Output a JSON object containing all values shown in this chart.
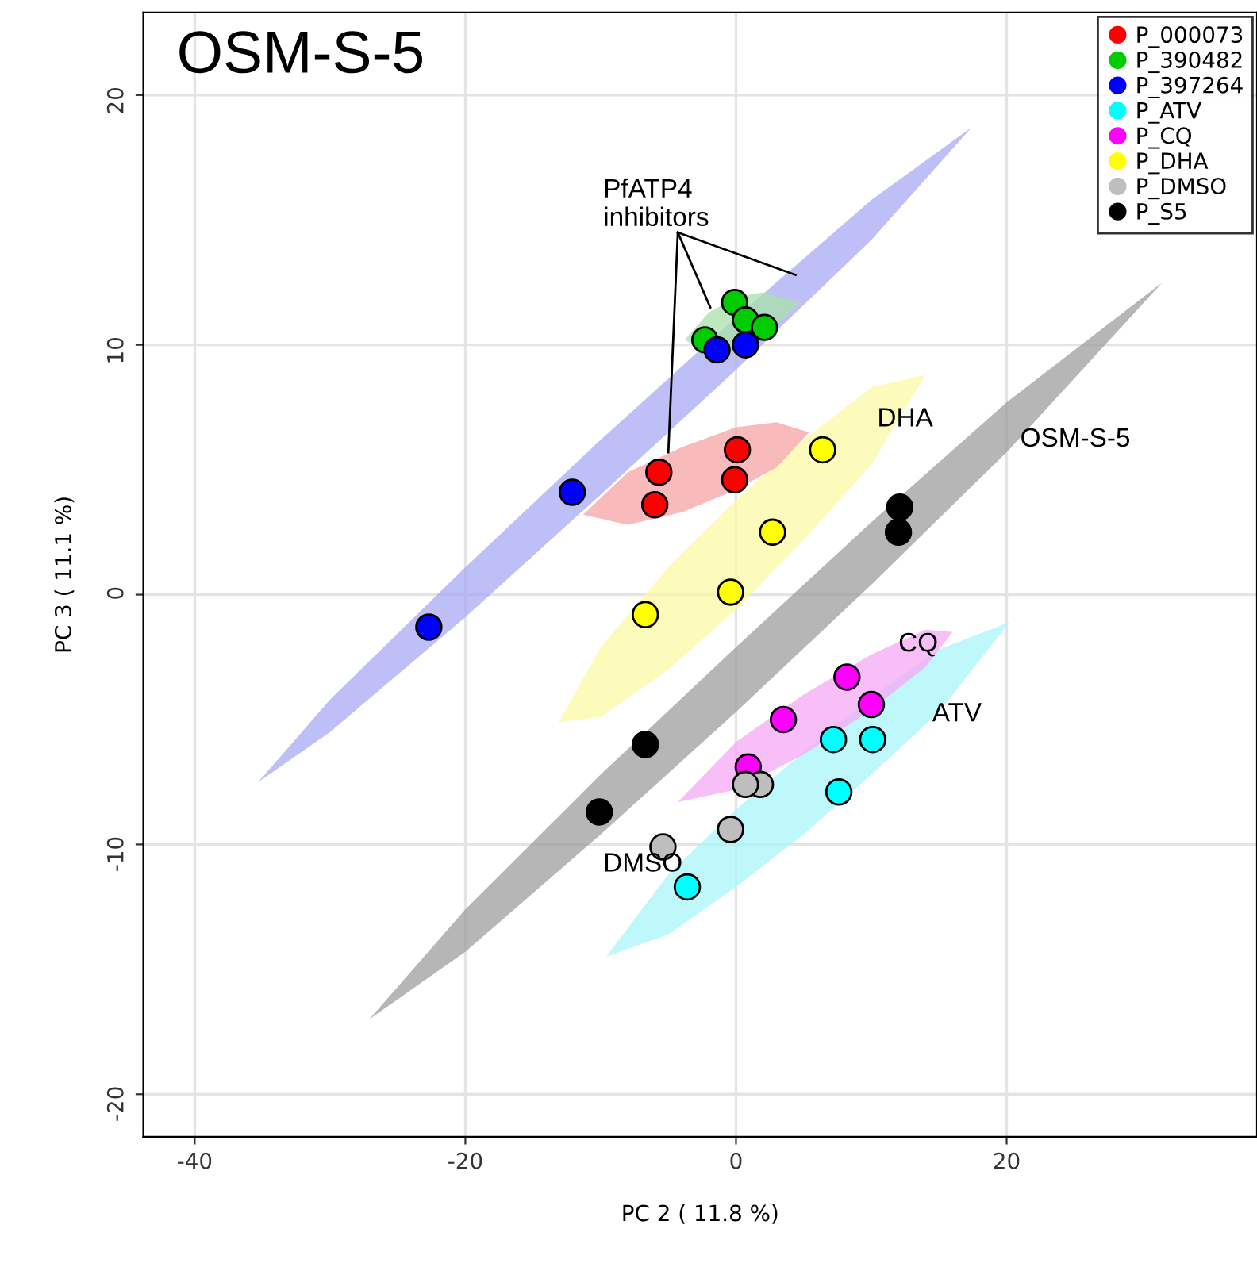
{
  "chart_data": {
    "type": "scatter",
    "title": "OSM-S-5",
    "xlabel": "PC 2 ( 11.8 %)",
    "ylabel": "PC 3 ( 11.1 %)",
    "xlim": [
      -43.8,
      38.5
    ],
    "ylim": [
      -21.7,
      23.3
    ],
    "xticks": [
      -40,
      -20,
      0,
      20
    ],
    "yticks": [
      -20,
      -10,
      0,
      10,
      20
    ],
    "grid": true,
    "legend": "top right",
    "annotations": [
      "PfATP4\ninhibitors",
      "DHA",
      {
        "text": "OSM-S-5",
        "x": 21.0,
        "y": 6.2
      },
      {
        "text": "CQ",
        "x": 12.0,
        "y": -2.0
      },
      {
        "text": "ATV",
        "x": 14.5,
        "y": -4.8
      },
      "DMSO"
    ],
    "series": [
      {
        "type": "area",
        "color": "#aaaaf6",
        "x": [
          -35.3,
          -30,
          -20,
          -10,
          0,
          10,
          17.4,
          10,
          0,
          -10,
          -20,
          -30
        ],
        "values": [
          -7.5,
          -4.2,
          1.1,
          6.2,
          11.1,
          15.8,
          18.7,
          14.2,
          9.0,
          4.0,
          -0.9,
          -5.5
        ]
      },
      {
        "type": "area",
        "color": "#9e9e9e",
        "x": [
          -27.1,
          -20,
          -10,
          0,
          10,
          20,
          31.5,
          20,
          10,
          0,
          -10,
          -20
        ],
        "values": [
          -17.0,
          -12.6,
          -7.2,
          -2.1,
          2.9,
          7.7,
          12.5,
          5.7,
          0.4,
          -4.7,
          -9.6,
          -14.3
        ]
      },
      {
        "type": "area",
        "color": "#fbfaa6",
        "x": [
          -13.1,
          -10,
          -5,
          0,
          5,
          10,
          14.0,
          10,
          5,
          0,
          -5,
          -10
        ],
        "values": [
          -5.1,
          -2.1,
          1.1,
          3.8,
          6.2,
          8.3,
          8.8,
          5.2,
          2.2,
          -0.6,
          -3.0,
          -4.9
        ]
      },
      {
        "type": "area",
        "color": "#f5a3a3",
        "x": [
          -11.3,
          -8,
          -4,
          0,
          3,
          5.4,
          3,
          0,
          -4,
          -8
        ],
        "values": [
          3.2,
          4.9,
          5.9,
          6.7,
          6.9,
          6.5,
          5.1,
          4.2,
          3.3,
          2.8
        ]
      },
      {
        "type": "area",
        "color": "#a8e2a8",
        "x": [
          -3.8,
          -2,
          0,
          2,
          4.7,
          2,
          0,
          -2
        ],
        "values": [
          10.2,
          11.3,
          11.9,
          12.1,
          11.7,
          10.3,
          9.9,
          9.7
        ]
      },
      {
        "type": "area",
        "color": "#a8f5f8",
        "x": [
          -9.6,
          -5,
          0,
          5,
          10,
          15,
          20.2,
          15,
          10,
          5,
          0,
          -5
        ],
        "values": [
          -14.5,
          -11.2,
          -8.6,
          -6.3,
          -4.1,
          -2.2,
          -1.1,
          -4.7,
          -7.2,
          -9.6,
          -11.7,
          -13.6
        ]
      },
      {
        "type": "area",
        "color": "#f6a8f6",
        "x": [
          -4.3,
          0,
          5,
          10,
          14,
          16.0,
          14,
          10,
          5,
          0
        ],
        "values": [
          -8.3,
          -5.9,
          -4.0,
          -2.4,
          -1.4,
          -1.5,
          -2.9,
          -4.6,
          -6.4,
          -7.8
        ]
      },
      {
        "type": "line",
        "color": "#000000",
        "x": [
          -4.3,
          -1.9
        ],
        "values": [
          14.5,
          11.5
        ]
      },
      {
        "type": "line",
        "color": "#000000",
        "x": [
          -4.3,
          -5.0
        ],
        "values": [
          14.5,
          5.7
        ]
      },
      {
        "type": "line",
        "color": "#000000",
        "x": [
          -4.3,
          4.4
        ],
        "values": [
          14.5,
          12.8
        ]
      },
      {
        "name": "P_000073",
        "marker": "circle",
        "color": "#ff0000",
        "x": [
          -5.7,
          -6.0,
          0.1,
          -0.1
        ],
        "values": [
          4.9,
          3.6,
          5.8,
          4.6
        ]
      },
      {
        "name": "P_390482",
        "marker": "circle",
        "color": "#00cc00",
        "x": [
          -0.1,
          -2.3,
          0.7,
          2.1
        ],
        "values": [
          11.7,
          10.2,
          11.0,
          10.7
        ]
      },
      {
        "name": "P_397264",
        "marker": "circle",
        "color": "#0000ff",
        "x": [
          -1.4,
          0.7,
          -12.1,
          -22.7
        ],
        "values": [
          9.8,
          10.0,
          4.1,
          -1.3
        ]
      },
      {
        "name": "P_ATV",
        "marker": "circle",
        "color": "#00ffff",
        "x": [
          10.1,
          7.2,
          7.6,
          -3.6
        ],
        "values": [
          -5.8,
          -5.8,
          -7.9,
          -11.7
        ]
      },
      {
        "name": "P_CQ",
        "marker": "circle",
        "color": "#ff00ff",
        "x": [
          8.2,
          10.0,
          3.5,
          0.9
        ],
        "values": [
          -3.3,
          -4.4,
          -5.0,
          -6.9
        ]
      },
      {
        "name": "P_DHA",
        "marker": "circle",
        "color": "#ffff00",
        "x": [
          6.4,
          2.7,
          -0.4,
          -6.7
        ],
        "values": [
          5.8,
          2.5,
          0.1,
          -0.8
        ]
      },
      {
        "name": "P_DMSO",
        "marker": "circle",
        "color": "#bebebe",
        "x": [
          1.8,
          0.7,
          -5.4,
          -0.4
        ],
        "values": [
          -7.6,
          -7.6,
          -10.1,
          -9.4
        ]
      },
      {
        "name": "P_S5",
        "marker": "circle",
        "color": "#000000",
        "x": [
          12.1,
          12.0,
          -6.7,
          -10.1
        ],
        "values": [
          3.5,
          2.5,
          -6.0,
          -8.7
        ]
      }
    ]
  }
}
